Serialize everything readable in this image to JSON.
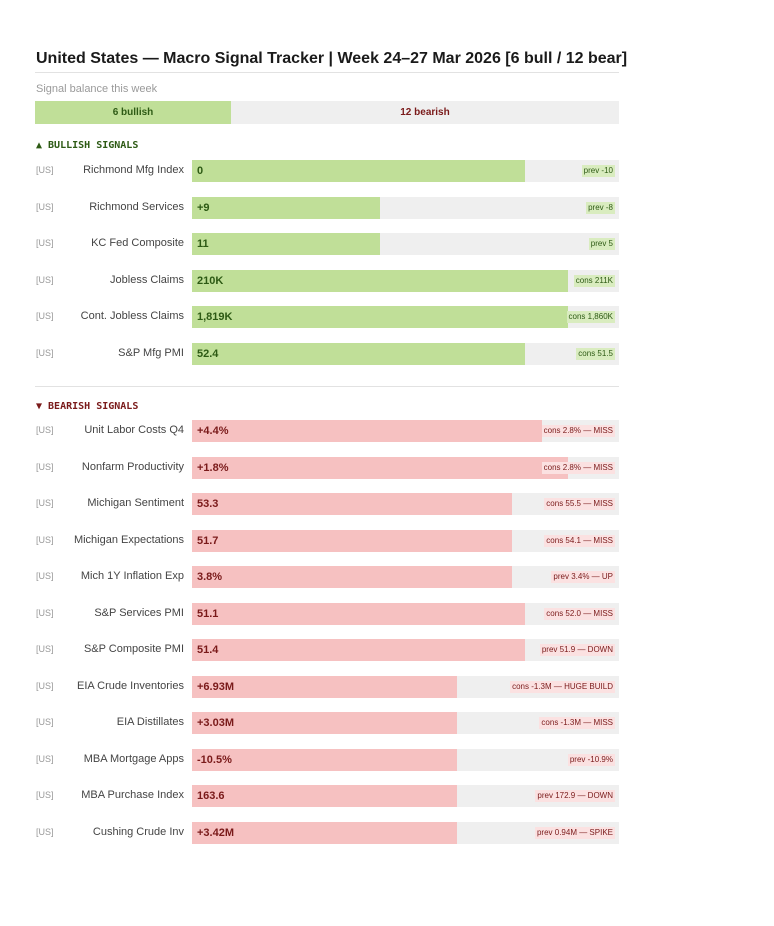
{
  "header": {
    "title": "United States — Macro Signal Tracker  |  Week 24–27 Mar 2026  [6 bull / 12 bear]",
    "subtitle": "Signal balance this week"
  },
  "balance": {
    "bullish": "6 bullish",
    "bearish": "12 bearish"
  },
  "sections": [
    {
      "heading": "▲  BULLISH SIGNALS",
      "rows": [
        {
          "region": "[US]",
          "name": "Richmond Mfg Index",
          "value": "0",
          "note": "prev -10"
        },
        {
          "region": "[US]",
          "name": "Richmond Services",
          "value": "+9",
          "note": "prev -8"
        },
        {
          "region": "[US]",
          "name": "KC Fed Composite",
          "value": "11",
          "note": "prev 5"
        },
        {
          "region": "[US]",
          "name": "Jobless Claims",
          "value": "210K",
          "note": "cons 211K"
        },
        {
          "region": "[US]",
          "name": "Cont. Jobless Claims",
          "value": "1,819K",
          "note": "cons 1,860K"
        },
        {
          "region": "[US]",
          "name": "S&P Mfg PMI",
          "value": "52.4",
          "note": "cons 51.5"
        }
      ]
    },
    {
      "heading": "▼  BEARISH SIGNALS",
      "rows": [
        {
          "region": "[US]",
          "name": "Unit Labor Costs Q4",
          "value": "+4.4%",
          "note": "cons 2.8% — MISS"
        },
        {
          "region": "[US]",
          "name": "Nonfarm Productivity",
          "value": "+1.8%",
          "note": "cons 2.8% — MISS"
        },
        {
          "region": "[US]",
          "name": "Michigan Sentiment",
          "value": "53.3",
          "note": "cons 55.5 — MISS"
        },
        {
          "region": "[US]",
          "name": "Michigan Expectations",
          "value": "51.7",
          "note": "cons 54.1 — MISS"
        },
        {
          "region": "[US]",
          "name": "Mich 1Y Inflation Exp",
          "value": "3.8%",
          "note": "prev 3.4% — UP"
        },
        {
          "region": "[US]",
          "name": "S&P Services PMI",
          "value": "51.1",
          "note": "cons 52.0 — MISS"
        },
        {
          "region": "[US]",
          "name": "S&P Composite PMI",
          "value": "51.4",
          "note": "prev 51.9 — DOWN"
        },
        {
          "region": "[US]",
          "name": "EIA Crude Inventories",
          "value": "+6.93M",
          "note": "cons -1.3M — HUGE BUILD"
        },
        {
          "region": "[US]",
          "name": "EIA Distillates",
          "value": "+3.03M",
          "note": "cons -1.3M — MISS"
        },
        {
          "region": "[US]",
          "name": "MBA Mortgage Apps",
          "value": "-10.5%",
          "note": "prev -10.9%"
        },
        {
          "region": "[US]",
          "name": "MBA Purchase Index",
          "value": "163.6",
          "note": "prev 172.9 — DOWN"
        },
        {
          "region": "[US]",
          "name": "Cushing Crude Inv",
          "value": "+3.42M",
          "note": "prev 0.94M — SPIKE"
        }
      ]
    }
  ]
}
